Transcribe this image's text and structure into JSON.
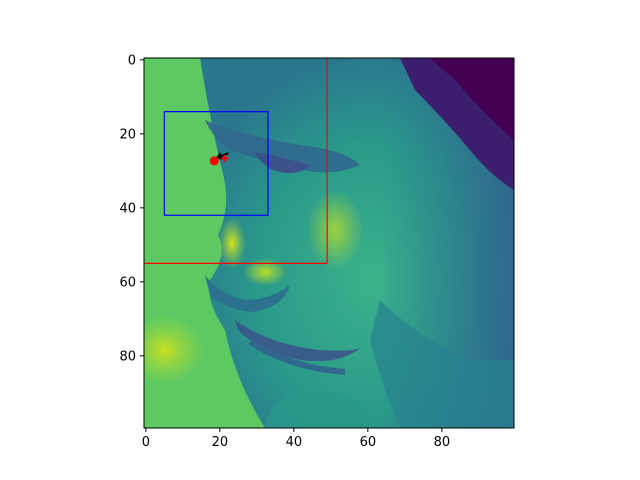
{
  "chart_data": {
    "type": "heatmap",
    "title": "",
    "xlabel": "",
    "ylabel": "",
    "colormap": "viridis",
    "image_size": [
      100,
      100
    ],
    "xlim": [
      -0.5,
      99.5
    ],
    "ylim": [
      99.5,
      -0.5
    ],
    "x_ticks": [
      0,
      20,
      40,
      60,
      80
    ],
    "y_ticks": [
      0,
      20,
      40,
      60,
      80
    ],
    "x_tick_labels": [
      "0",
      "20",
      "40",
      "60",
      "80"
    ],
    "y_tick_labels": [
      "0",
      "20",
      "40",
      "60",
      "80"
    ],
    "image_content": "grayscale face in profile, rendered with viridis colormap",
    "overlays": {
      "red_box": {
        "color": "#ff0000",
        "x": [
          -0.5,
          49
        ],
        "y": [
          -0.5,
          55
        ]
      },
      "blue_box": {
        "color": "#0000ff",
        "x": [
          5,
          33
        ],
        "y": [
          14,
          42
        ]
      },
      "point": {
        "color": "#ff0000",
        "x": 18.5,
        "y": 27.3
      },
      "cross_marker": {
        "color": "#ff0000",
        "x": 21.3,
        "y": 26.6
      },
      "arrow": {
        "color": "#000000",
        "from": [
          19,
          26.6
        ],
        "to": [
          22.3,
          25.2
        ]
      }
    }
  }
}
